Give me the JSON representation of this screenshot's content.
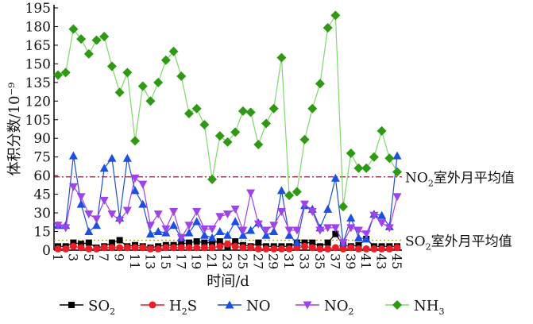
{
  "chart_data": {
    "type": "line",
    "ylabel": "体积分数/10⁻⁹",
    "xlabel": "时间/d",
    "ylim": [
      0,
      195
    ],
    "yticks": [
      0,
      15,
      30,
      45,
      60,
      75,
      90,
      105,
      120,
      135,
      150,
      165,
      180,
      195
    ],
    "xlim": [
      1,
      45
    ],
    "xtick_labels": [
      "1",
      "3",
      "5",
      "7",
      "9",
      "11",
      "13",
      "15",
      "17",
      "19",
      "21",
      "23",
      "25",
      "27",
      "29",
      "31",
      "33",
      "35",
      "37",
      "39",
      "41",
      "43",
      "45"
    ],
    "x": [
      1,
      2,
      3,
      4,
      5,
      6,
      7,
      8,
      9,
      10,
      11,
      12,
      13,
      14,
      15,
      16,
      17,
      18,
      19,
      20,
      21,
      22,
      23,
      24,
      25,
      26,
      27,
      28,
      29,
      30,
      31,
      32,
      33,
      34,
      35,
      36,
      37,
      38,
      39,
      40,
      41,
      42,
      43,
      44,
      45
    ],
    "series": [
      {
        "name": "SO2",
        "base": "SO",
        "sub": "2",
        "tail": "",
        "color": "#000000",
        "marker": "square",
        "values": [
          3,
          3,
          6,
          5,
          6,
          2,
          3,
          6,
          8,
          3,
          4,
          3,
          2,
          3,
          4,
          4,
          5,
          6,
          7,
          6,
          6,
          7,
          3,
          7,
          4,
          3,
          6,
          3,
          3,
          3,
          3,
          6,
          6,
          6,
          3,
          6,
          13,
          4,
          3,
          4,
          9,
          3,
          3,
          3,
          3
        ]
      },
      {
        "name": "H2S",
        "base": "H",
        "sub": "2",
        "tail": "S",
        "color": "#ee1c25",
        "marker": "circle",
        "values": [
          1,
          1,
          3,
          2,
          1,
          1,
          2,
          2,
          2,
          2,
          2,
          2,
          1,
          1,
          2,
          2,
          2,
          2,
          2,
          2,
          2,
          3,
          5,
          3,
          2,
          2,
          1,
          1,
          1,
          1,
          1,
          2,
          3,
          2,
          1,
          1,
          2,
          1,
          2,
          1,
          1,
          1,
          1,
          1,
          2
        ]
      },
      {
        "name": "NO",
        "base": "NO",
        "sub": "",
        "tail": "",
        "color": "#1a4fe6",
        "marker": "triangle-up",
        "values": [
          20,
          20,
          76,
          37,
          15,
          20,
          66,
          74,
          26,
          74,
          48,
          37,
          13,
          15,
          14,
          20,
          10,
          14,
          23,
          12,
          10,
          15,
          12,
          23,
          12,
          16,
          22,
          12,
          15,
          48,
          12,
          6,
          36,
          33,
          18,
          33,
          58,
          6,
          26,
          10,
          9,
          29,
          28,
          19,
          76
        ]
      },
      {
        "name": "NO2",
        "base": "NO",
        "sub": "2",
        "tail": "",
        "color": "#a040f0",
        "marker": "triangle-down",
        "values": [
          20,
          18,
          51,
          43,
          29,
          25,
          40,
          29,
          24,
          32,
          58,
          53,
          20,
          29,
          17,
          31,
          10,
          20,
          31,
          17,
          17,
          27,
          29,
          33,
          16,
          46,
          21,
          16,
          20,
          31,
          16,
          16,
          37,
          31,
          16,
          18,
          18,
          6,
          18,
          16,
          13,
          28,
          22,
          18,
          43
        ]
      },
      {
        "name": "NH3",
        "base": "NH",
        "sub": "3",
        "tail": "",
        "color": "#2e9a12",
        "line_color": "#7fd86a",
        "marker": "diamond",
        "values": [
          141,
          143,
          178,
          170,
          158,
          169,
          172,
          148,
          127,
          143,
          88,
          132,
          120,
          135,
          153,
          160,
          140,
          110,
          114,
          101,
          57,
          92,
          87,
          95,
          112,
          111,
          85,
          102,
          114,
          155,
          44,
          47,
          89,
          114,
          134,
          179,
          189,
          35,
          78,
          66,
          66,
          75,
          96,
          74,
          63
        ]
      }
    ],
    "reference_lines": [
      {
        "value": 59,
        "base": "NO",
        "sub": "2",
        "label": "室外月平均值",
        "color": "#8b1a3a",
        "style": "dash-dot"
      },
      {
        "value": 8,
        "base": "SO",
        "sub": "2",
        "label": "室外月平均值",
        "color": "#a0a020",
        "style": "dotted"
      }
    ],
    "legend": "bottom",
    "grid": false
  }
}
